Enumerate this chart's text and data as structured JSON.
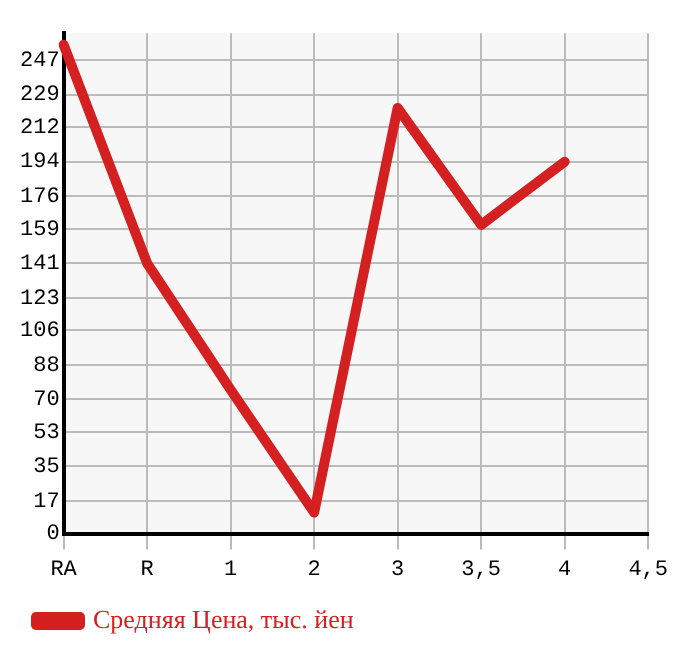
{
  "chart_data": {
    "type": "line",
    "categories": [
      "RA",
      "R",
      "1",
      "2",
      "3",
      "3,5",
      "4",
      "4,5"
    ],
    "series": [
      {
        "name": "Средняя Цена, тыс. йен",
        "color": "#d42020",
        "values": [
          255,
          141,
          75,
          11,
          222,
          161,
          194,
          null
        ]
      }
    ],
    "ylim": [
      0,
      261
    ],
    "yticks": [
      0,
      17,
      35,
      53,
      70,
      88,
      106,
      123,
      141,
      159,
      176,
      194,
      212,
      229,
      247
    ],
    "grid": true,
    "legend": "bottom left",
    "marker": "none",
    "line_style": "solid"
  }
}
